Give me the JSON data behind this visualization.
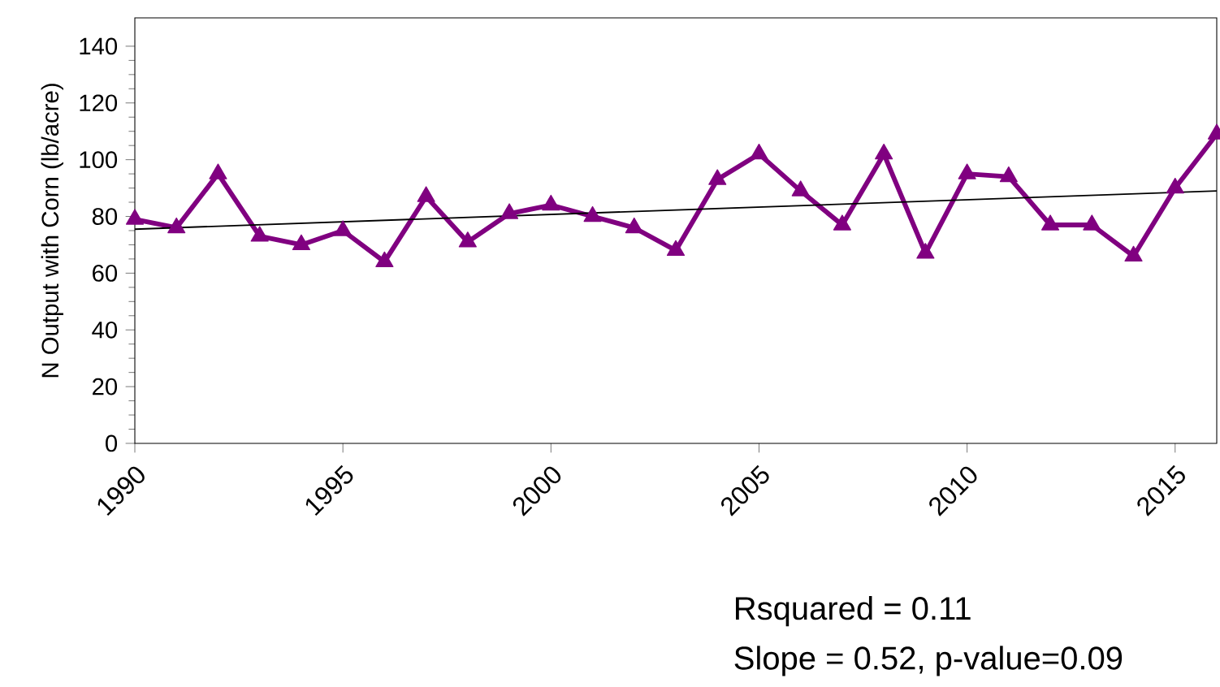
{
  "chart_data": {
    "type": "line",
    "ylabel": "N Output with Corn (lb/acre)",
    "x": [
      1990,
      1991,
      1992,
      1993,
      1994,
      1995,
      1996,
      1997,
      1998,
      1999,
      2000,
      2001,
      2002,
      2003,
      2004,
      2005,
      2006,
      2007,
      2008,
      2009,
      2010,
      2011,
      2012,
      2013,
      2014,
      2015,
      2016
    ],
    "series": [
      {
        "color": "#800080",
        "marker": "triangle",
        "values": [
          79,
          76,
          95,
          73,
          70,
          75,
          64,
          87,
          71,
          81,
          84,
          80,
          76,
          68,
          93,
          102,
          89,
          77,
          102,
          67,
          95,
          94,
          77,
          77,
          66,
          90,
          109
        ]
      },
      {
        "type": "line",
        "color": "#000000",
        "marker": "none",
        "x": [
          1990,
          2016
        ],
        "values": [
          75.5,
          89
        ]
      }
    ],
    "xlim": [
      1990,
      2016
    ],
    "ylim": [
      0,
      150
    ],
    "xticks": [
      1990,
      1995,
      2000,
      2005,
      2010,
      2015
    ],
    "yticks": [
      0,
      20,
      40,
      60,
      80,
      100,
      120,
      140
    ],
    "annotations": [
      "Rsquared = 0.11",
      "Slope = 0.52, p-value=0.09"
    ]
  }
}
